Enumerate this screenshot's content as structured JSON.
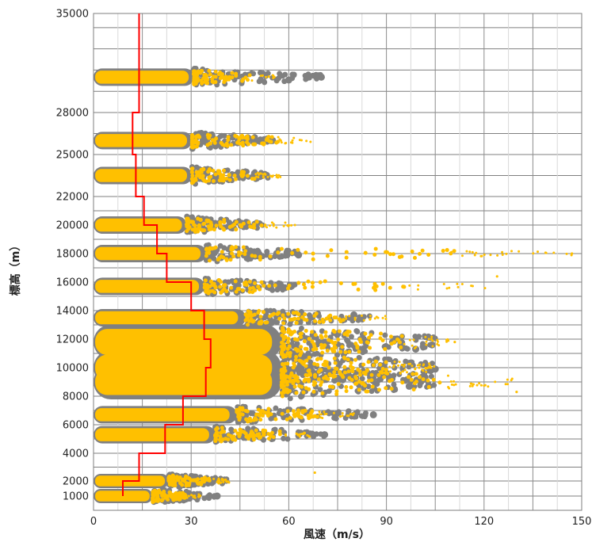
{
  "chart_data": {
    "type": "scatter",
    "xlabel": "風速（m/s）",
    "ylabel": "標高（m）",
    "xlim": [
      0,
      150
    ],
    "x_ticks": [
      0,
      30,
      60,
      90,
      120,
      150
    ],
    "y_tick_labels": [
      "1000",
      "2000",
      "4000",
      "6000",
      "8000",
      "10000",
      "12000",
      "14000",
      "16000",
      "18000",
      "20000",
      "22000",
      "25000",
      "28000",
      "35000"
    ],
    "y_tick_values": [
      1000,
      2000,
      4000,
      6000,
      8000,
      10000,
      12000,
      14000,
      16000,
      18000,
      20000,
      22000,
      25000,
      28000,
      35000
    ],
    "grid": true,
    "colors": {
      "observation_gray": "#808080",
      "observation_orange": "#ffc000",
      "profile_red": "#ff0000"
    },
    "scatter_bands": [
      {
        "altitude_m": 1000,
        "x_max_gray": 38,
        "x_max_orange": 33,
        "width": "thin"
      },
      {
        "altitude_m": 2000,
        "x_max_gray": 42,
        "x_max_orange": 42,
        "width": "thin"
      },
      {
        "altitude_m": 5300,
        "x_max_gray": 71,
        "x_max_orange": 68,
        "width": "medium"
      },
      {
        "altitude_m": 6700,
        "x_max_gray": 86,
        "x_max_orange": 80,
        "width": "medium"
      },
      {
        "altitude_m": 9000,
        "x_max_gray": 105,
        "x_max_orange": 130,
        "width": "thick"
      },
      {
        "altitude_m": 10000,
        "x_max_gray": 105,
        "x_max_orange": 105,
        "width": "thick"
      },
      {
        "altitude_m": 11800,
        "x_max_gray": 105,
        "x_max_orange": 111,
        "width": "thick"
      },
      {
        "altitude_m": 13500,
        "x_max_gray": 85,
        "x_max_orange": 90,
        "width": "medium"
      },
      {
        "altitude_m": 15700,
        "x_max_gray": 62,
        "x_max_orange": 124,
        "width": "medium"
      },
      {
        "altitude_m": 18000,
        "x_max_gray": 63,
        "x_max_orange": 147,
        "width": "medium"
      },
      {
        "altitude_m": 20000,
        "x_max_gray": 52,
        "x_max_orange": 62,
        "width": "medium"
      },
      {
        "altitude_m": 23500,
        "x_max_gray": 55,
        "x_max_orange": 58,
        "width": "medium"
      },
      {
        "altitude_m": 26000,
        "x_max_gray": 55,
        "x_max_orange": 68,
        "width": "medium"
      },
      {
        "altitude_m": 30500,
        "x_max_gray": 70,
        "x_max_orange": 56,
        "width": "medium"
      }
    ],
    "large_gray_markers": [
      {
        "x": 38,
        "y": 1000
      },
      {
        "x": 71,
        "y": 5300
      },
      {
        "x": 86,
        "y": 6700
      },
      {
        "x": 97,
        "y": 8700
      },
      {
        "x": 100,
        "y": 9100
      },
      {
        "x": 105,
        "y": 9900
      },
      {
        "x": 102,
        "y": 10200
      },
      {
        "x": 99,
        "y": 11300
      },
      {
        "x": 104,
        "y": 11600
      },
      {
        "x": 93,
        "y": 12000
      },
      {
        "x": 80,
        "y": 13700
      },
      {
        "x": 63,
        "y": 17900
      },
      {
        "x": 70,
        "y": 30500
      },
      {
        "x": 60,
        "y": 30300
      },
      {
        "x": 55,
        "y": 26000
      }
    ],
    "orange_outliers": [
      {
        "x": 130,
        "y": 8300
      },
      {
        "x": 111,
        "y": 11800
      },
      {
        "x": 124,
        "y": 16400
      },
      {
        "x": 110,
        "y": 18100
      },
      {
        "x": 147,
        "y": 18000
      },
      {
        "x": 68,
        "y": 2600
      }
    ],
    "profile_line": {
      "name": "",
      "steps": [
        {
          "x": 9,
          "y": 1000
        },
        {
          "x": 9,
          "y": 2000
        },
        {
          "x": 14,
          "y": 2000
        },
        {
          "x": 14,
          "y": 4000
        },
        {
          "x": 22,
          "y": 4000
        },
        {
          "x": 22,
          "y": 6000
        },
        {
          "x": 27.5,
          "y": 6000
        },
        {
          "x": 27.5,
          "y": 8000
        },
        {
          "x": 34.5,
          "y": 8000
        },
        {
          "x": 34.5,
          "y": 10000
        },
        {
          "x": 36,
          "y": 10000
        },
        {
          "x": 36,
          "y": 12000
        },
        {
          "x": 34,
          "y": 12000
        },
        {
          "x": 34,
          "y": 14000
        },
        {
          "x": 30,
          "y": 14000
        },
        {
          "x": 30,
          "y": 16000
        },
        {
          "x": 22.5,
          "y": 16000
        },
        {
          "x": 22.5,
          "y": 18000
        },
        {
          "x": 19.5,
          "y": 18000
        },
        {
          "x": 19.5,
          "y": 20000
        },
        {
          "x": 15.5,
          "y": 20000
        },
        {
          "x": 15.5,
          "y": 22000
        },
        {
          "x": 13,
          "y": 22000
        },
        {
          "x": 13,
          "y": 25000
        },
        {
          "x": 12,
          "y": 25000
        },
        {
          "x": 12,
          "y": 28000
        },
        {
          "x": 14,
          "y": 28000
        },
        {
          "x": 14,
          "y": 35000
        }
      ]
    }
  }
}
